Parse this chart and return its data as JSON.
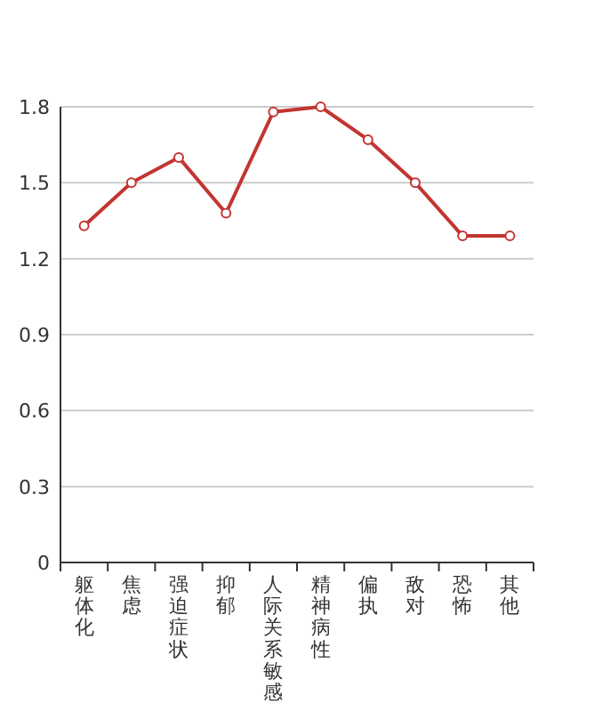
{
  "chart_data": {
    "type": "line",
    "categories": [
      "躯体化",
      "焦虑",
      "强迫症状",
      "抑郁",
      "人际关系敏感",
      "精神病性",
      "偏执",
      "敌对",
      "恐怖",
      "其他"
    ],
    "series": [
      {
        "color": "#c23531",
        "values": [
          1.33,
          1.5,
          1.6,
          1.38,
          1.78,
          1.8,
          1.67,
          1.5,
          1.29,
          1.29
        ]
      }
    ],
    "ylim": [
      0,
      1.8
    ],
    "yticks": [
      0,
      0.3,
      0.6,
      0.9,
      1.2,
      1.5,
      1.8
    ],
    "grid": "y",
    "marker": "circle",
    "line_style": "solid"
  }
}
